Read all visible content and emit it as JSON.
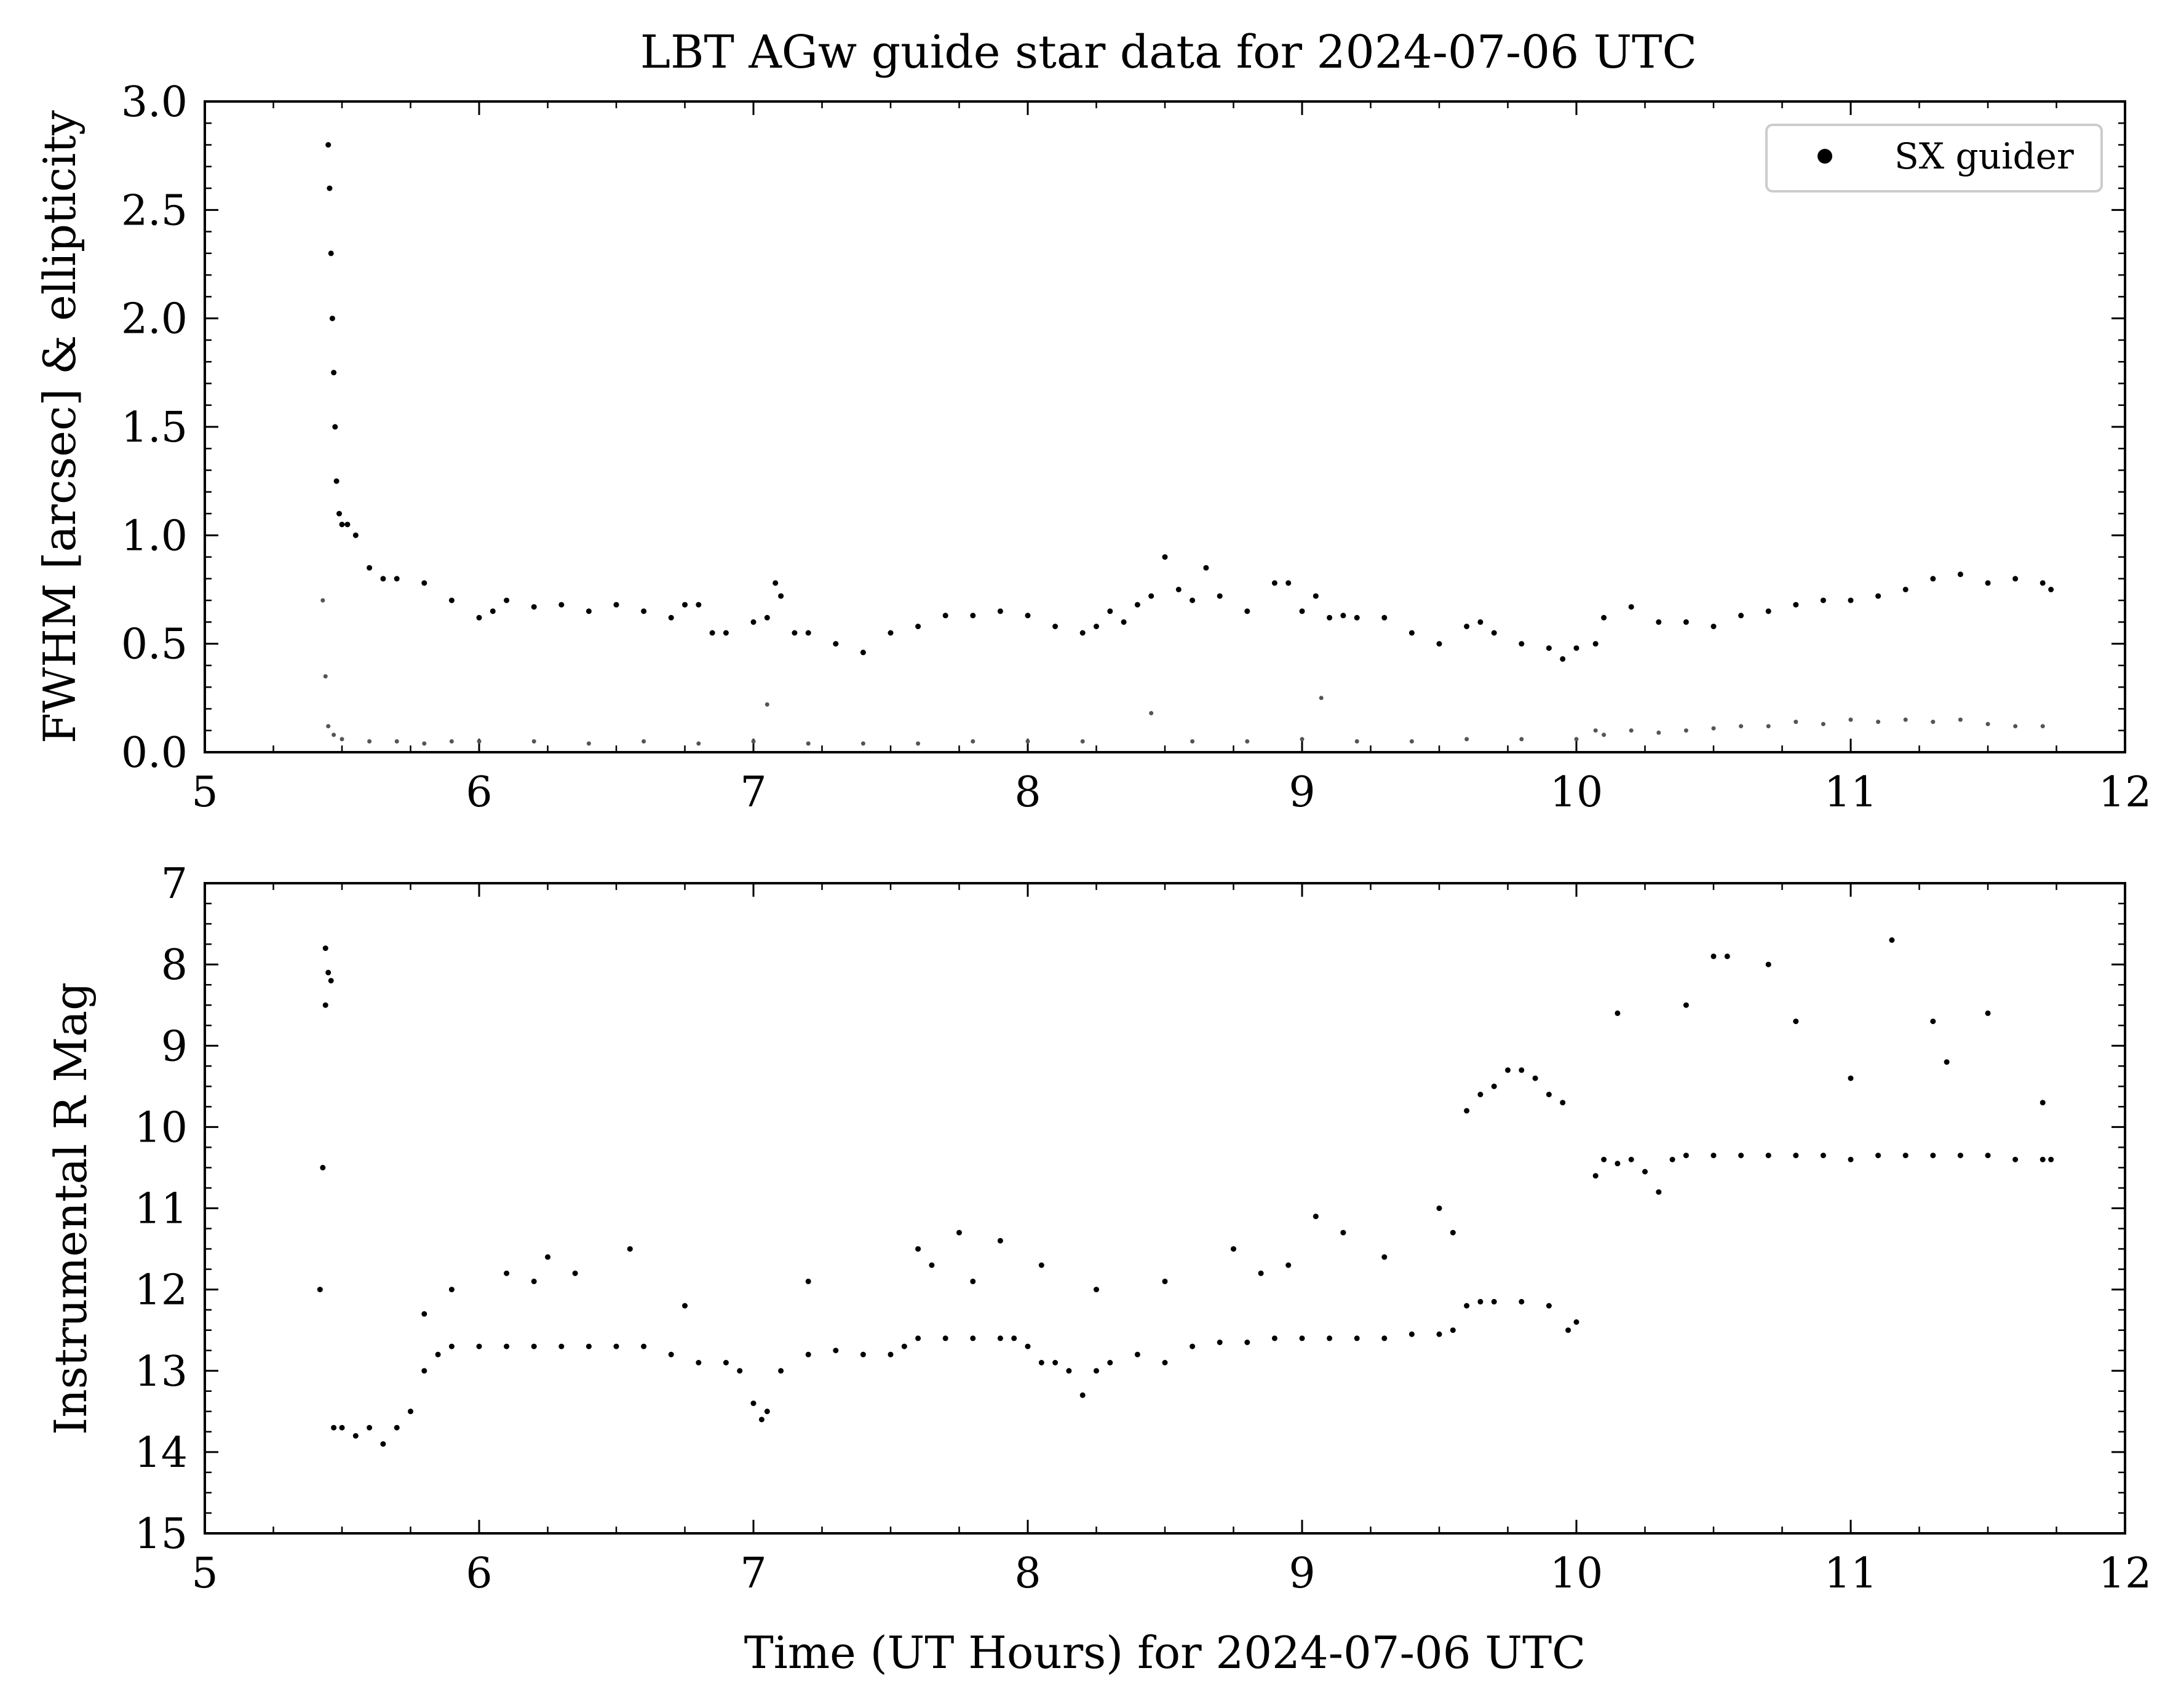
{
  "figure": {
    "title": "LBT AGw guide star data for 2024-07-06 UTC",
    "xlabel": "Time (UT Hours) for 2024-07-06 UTC"
  },
  "chart_data": [
    {
      "type": "scatter",
      "panel": "top",
      "ylabel": "FWHM [arcsec] & ellipticity",
      "xlim": [
        5,
        12
      ],
      "ylim": [
        0,
        3
      ],
      "x_ticks": [
        "5",
        "6",
        "7",
        "8",
        "9",
        "10",
        "11",
        "12"
      ],
      "y_ticks": [
        "0.0",
        "0.5",
        "1.0",
        "1.5",
        "2.0",
        "2.5",
        "3.0"
      ],
      "legend": {
        "position": "top-right",
        "entries": [
          {
            "label": "SX guider",
            "marker": "dot",
            "color": "#000000"
          }
        ]
      },
      "series": [
        {
          "name": "SX guider",
          "color": "#000000",
          "x": [
            5.45,
            5.455,
            5.46,
            5.465,
            5.47,
            5.475,
            5.48,
            5.49,
            5.5,
            5.52,
            5.55,
            5.6,
            5.65,
            5.7,
            5.8,
            5.9,
            6.0,
            6.05,
            6.1,
            6.2,
            6.3,
            6.4,
            6.5,
            6.6,
            6.7,
            6.75,
            6.8,
            6.85,
            6.9,
            7.0,
            7.05,
            7.08,
            7.1,
            7.15,
            7.2,
            7.3,
            7.4,
            7.5,
            7.6,
            7.7,
            7.8,
            7.9,
            8.0,
            8.1,
            8.2,
            8.25,
            8.3,
            8.35,
            8.4,
            8.45,
            8.5,
            8.55,
            8.6,
            8.65,
            8.7,
            8.8,
            8.9,
            8.95,
            9.0,
            9.05,
            9.1,
            9.15,
            9.2,
            9.3,
            9.4,
            9.5,
            9.6,
            9.65,
            9.7,
            9.8,
            9.9,
            9.95,
            10.0,
            10.07,
            10.1,
            10.2,
            10.3,
            10.4,
            10.5,
            10.6,
            10.7,
            10.8,
            10.9,
            11.0,
            11.1,
            11.2,
            11.3,
            11.4,
            11.5,
            11.6,
            11.7,
            11.73
          ],
          "y": [
            2.8,
            2.6,
            2.3,
            2.0,
            1.75,
            1.5,
            1.25,
            1.1,
            1.05,
            1.05,
            1.0,
            0.85,
            0.8,
            0.8,
            0.78,
            0.7,
            0.62,
            0.65,
            0.7,
            0.67,
            0.68,
            0.65,
            0.68,
            0.65,
            0.62,
            0.68,
            0.68,
            0.55,
            0.55,
            0.6,
            0.62,
            0.78,
            0.72,
            0.55,
            0.55,
            0.5,
            0.46,
            0.55,
            0.58,
            0.63,
            0.63,
            0.65,
            0.63,
            0.58,
            0.55,
            0.58,
            0.65,
            0.6,
            0.68,
            0.72,
            0.9,
            0.75,
            0.7,
            0.85,
            0.72,
            0.65,
            0.78,
            0.78,
            0.65,
            0.72,
            0.62,
            0.63,
            0.62,
            0.62,
            0.55,
            0.5,
            0.58,
            0.6,
            0.55,
            0.5,
            0.48,
            0.43,
            0.48,
            0.5,
            0.62,
            0.67,
            0.6,
            0.6,
            0.58,
            0.63,
            0.65,
            0.68,
            0.7,
            0.7,
            0.72,
            0.75,
            0.8,
            0.82,
            0.78,
            0.8,
            0.78,
            0.75
          ]
        },
        {
          "name": "",
          "color": "#555555",
          "x": [
            5.43,
            5.44,
            5.45,
            5.47,
            5.5,
            5.6,
            5.7,
            5.8,
            5.9,
            6.0,
            6.2,
            6.4,
            6.6,
            6.8,
            7.0,
            7.05,
            7.2,
            7.4,
            7.6,
            7.8,
            8.0,
            8.2,
            8.45,
            8.6,
            8.8,
            9.0,
            9.07,
            9.2,
            9.4,
            9.6,
            9.8,
            10.0,
            10.07,
            10.1,
            10.2,
            10.3,
            10.4,
            10.5,
            10.6,
            10.7,
            10.8,
            10.9,
            11.0,
            11.1,
            11.2,
            11.3,
            11.4,
            11.5,
            11.6,
            11.7
          ],
          "y": [
            0.7,
            0.35,
            0.12,
            0.08,
            0.06,
            0.05,
            0.05,
            0.04,
            0.05,
            0.05,
            0.05,
            0.04,
            0.05,
            0.04,
            0.05,
            0.22,
            0.04,
            0.04,
            0.04,
            0.05,
            0.05,
            0.05,
            0.18,
            0.05,
            0.05,
            0.06,
            0.25,
            0.05,
            0.05,
            0.06,
            0.06,
            0.06,
            0.1,
            0.08,
            0.1,
            0.09,
            0.1,
            0.11,
            0.12,
            0.12,
            0.14,
            0.13,
            0.15,
            0.14,
            0.15,
            0.14,
            0.15,
            0.13,
            0.12,
            0.12
          ]
        }
      ]
    },
    {
      "type": "scatter",
      "panel": "bottom",
      "ylabel": "Instrumental R Mag",
      "xlim": [
        5,
        12
      ],
      "ylim": [
        15,
        7
      ],
      "y_inverted": true,
      "x_ticks": [
        "5",
        "6",
        "7",
        "8",
        "9",
        "10",
        "11",
        "12"
      ],
      "y_ticks": [
        "7",
        "8",
        "9",
        "10",
        "11",
        "12",
        "13",
        "14",
        "15"
      ],
      "series": [
        {
          "name": "SX guider",
          "color": "#000000",
          "x": [
            5.42,
            5.43,
            5.44,
            5.45,
            5.46,
            5.47,
            5.5,
            5.55,
            5.6,
            5.65,
            5.7,
            5.75,
            5.8,
            5.85,
            5.9,
            6.0,
            6.1,
            6.2,
            6.3,
            6.4,
            6.5,
            6.6,
            6.7,
            6.8,
            6.9,
            6.95,
            7.0,
            7.03,
            7.05,
            7.1,
            7.2,
            7.3,
            7.4,
            7.5,
            7.55,
            7.6,
            7.7,
            7.8,
            7.9,
            7.95,
            8.0,
            8.05,
            8.1,
            8.15,
            8.2,
            8.25,
            8.3,
            8.4,
            8.5,
            8.6,
            8.7,
            8.8,
            8.9,
            9.0,
            9.1,
            9.2,
            9.3,
            9.4,
            9.5,
            9.55,
            9.6,
            9.65,
            9.7,
            9.8,
            9.9,
            9.97,
            10.0,
            10.07,
            10.1,
            10.15,
            10.2,
            10.25,
            10.3,
            10.35,
            10.4,
            10.5,
            10.6,
            10.7,
            10.8,
            10.9,
            11.0,
            11.1,
            11.2,
            11.3,
            11.4,
            11.5,
            11.6,
            11.7,
            11.73
          ],
          "y": [
            12.0,
            10.5,
            8.5,
            8.1,
            8.2,
            13.7,
            13.7,
            13.8,
            13.7,
            13.9,
            13.7,
            13.5,
            13.0,
            12.8,
            12.7,
            12.7,
            12.7,
            12.7,
            12.7,
            12.7,
            12.7,
            12.7,
            12.8,
            12.9,
            12.9,
            13.0,
            13.4,
            13.6,
            13.5,
            13.0,
            12.8,
            12.75,
            12.8,
            12.8,
            12.7,
            12.6,
            12.6,
            12.6,
            12.6,
            12.6,
            12.7,
            12.9,
            12.9,
            13.0,
            13.3,
            13.0,
            12.9,
            12.8,
            12.9,
            12.7,
            12.65,
            12.65,
            12.6,
            12.6,
            12.6,
            12.6,
            12.6,
            12.55,
            12.55,
            12.5,
            12.2,
            12.15,
            12.15,
            12.15,
            12.2,
            12.5,
            12.4,
            10.6,
            10.4,
            10.45,
            10.4,
            10.55,
            10.8,
            10.4,
            10.35,
            10.35,
            10.35,
            10.35,
            10.35,
            10.35,
            10.4,
            10.35,
            10.35,
            10.35,
            10.35,
            10.35,
            10.4,
            10.4,
            10.4
          ]
        },
        {
          "name": "",
          "color": "#000000",
          "x": [
            5.44,
            5.8,
            5.9,
            6.1,
            6.2,
            6.25,
            6.35,
            6.55,
            6.75,
            7.2,
            7.6,
            7.65,
            7.75,
            7.8,
            7.9,
            8.05,
            8.25,
            8.5,
            8.75,
            8.85,
            8.95,
            9.05,
            9.15,
            9.3,
            9.5,
            9.55,
            9.6,
            9.65,
            9.7,
            9.75,
            9.8,
            9.85,
            9.9,
            9.95,
            10.15,
            10.4,
            10.5,
            10.55,
            10.7,
            10.8,
            11.0,
            11.15,
            11.3,
            11.35,
            11.5,
            11.7
          ],
          "y": [
            7.8,
            12.3,
            12.0,
            11.8,
            11.9,
            11.6,
            11.8,
            11.5,
            12.2,
            11.9,
            11.5,
            11.7,
            11.3,
            11.9,
            11.4,
            11.7,
            12.0,
            11.9,
            11.5,
            11.8,
            11.7,
            11.1,
            11.3,
            11.6,
            11.0,
            11.3,
            9.8,
            9.6,
            9.5,
            9.3,
            9.3,
            9.4,
            9.6,
            9.7,
            8.6,
            8.5,
            7.9,
            7.9,
            8.0,
            8.7,
            9.4,
            7.7,
            8.7,
            9.2,
            8.6,
            9.7
          ]
        }
      ]
    }
  ]
}
